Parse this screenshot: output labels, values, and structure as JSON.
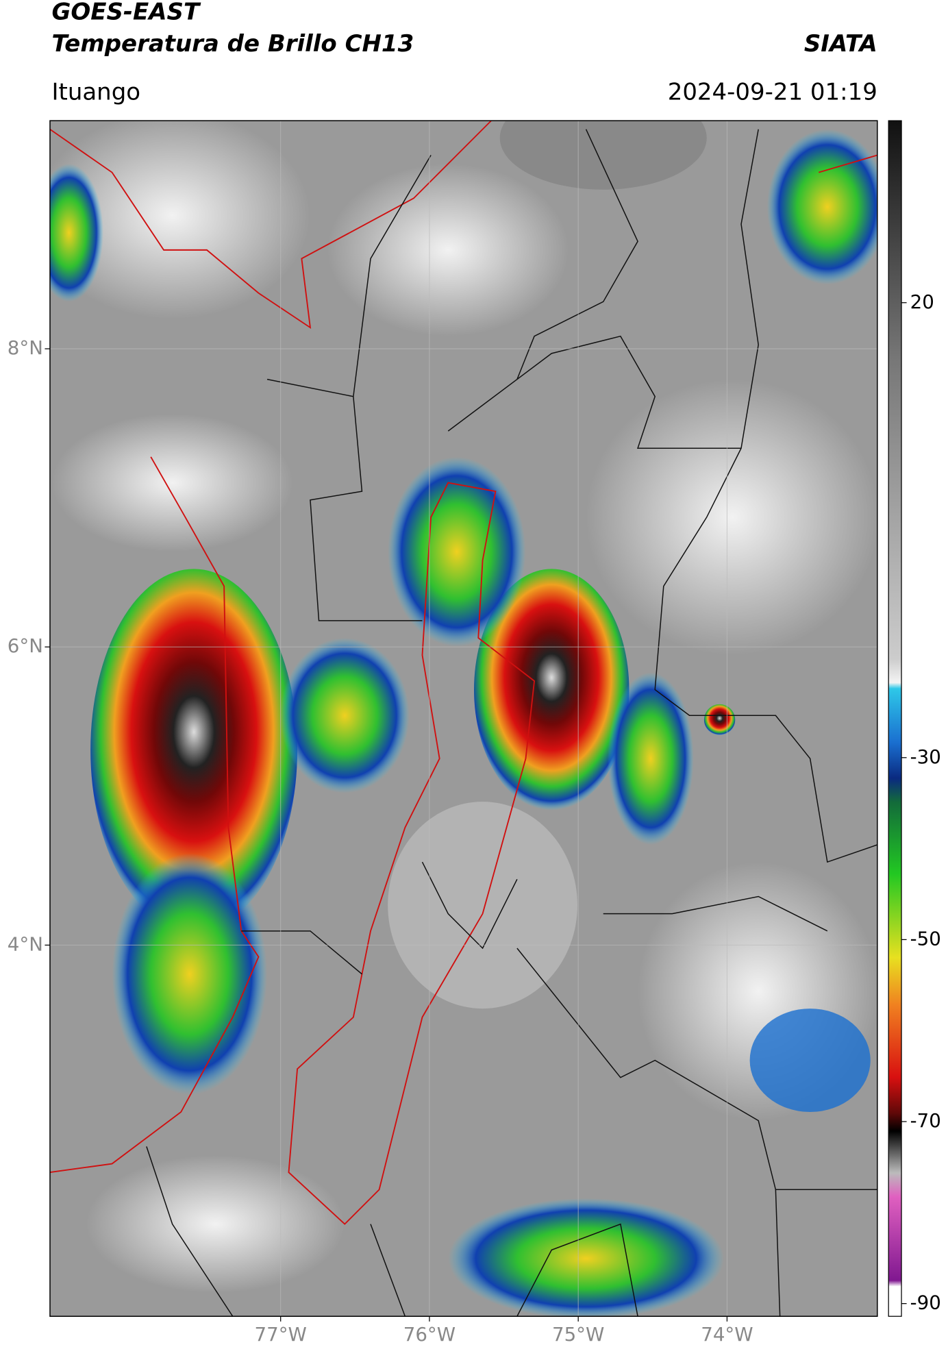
{
  "header": {
    "satellite": "GOES-EAST",
    "product": "Temperatura de Brillo CH13",
    "institution": "SIATA",
    "region": "Ituango",
    "datetime": "2024-09-21 01:19"
  },
  "map": {
    "xlim": [
      -78.55,
      -72.99
    ],
    "ylim": [
      1.51,
      9.53
    ],
    "xticks": [
      {
        "value": -77,
        "label": "77°W"
      },
      {
        "value": -76,
        "label": "76°W"
      },
      {
        "value": -75,
        "label": "75°W"
      },
      {
        "value": -74,
        "label": "74°W"
      }
    ],
    "yticks": [
      {
        "value": 8,
        "label": "8°N"
      },
      {
        "value": 6,
        "label": "6°N"
      },
      {
        "value": 4,
        "label": "4°N"
      }
    ],
    "grid": true
  },
  "colorbar": {
    "lim": [
      -91.4,
      40
    ],
    "ticks": [
      20,
      -30,
      -50,
      -70,
      -90
    ]
  }
}
